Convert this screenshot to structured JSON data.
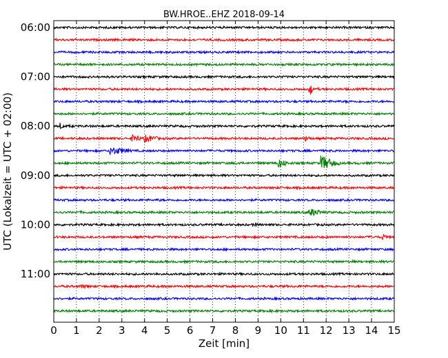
{
  "chart_data": {
    "type": "line",
    "title": "BW.HROE..EHZ 2018-09-14",
    "xlabel": "Zeit  [min]",
    "ylabel": "UTC (Lokalzeit = UTC + 02:00)",
    "xlim": [
      0,
      15
    ],
    "x_ticks": [
      0,
      1,
      2,
      3,
      4,
      5,
      6,
      7,
      8,
      9,
      10,
      11,
      12,
      13,
      14,
      15
    ],
    "y_ticks": [
      "06:00",
      "07:00",
      "08:00",
      "09:00",
      "10:00",
      "11:00"
    ],
    "grid": "vertical dotted",
    "trace_interval_min": 15,
    "colors": [
      "#000000",
      "#ff0000",
      "#0000ff",
      "#008000"
    ],
    "traces": [
      {
        "start": "06:00",
        "color": "#000000",
        "events": []
      },
      {
        "start": "06:15",
        "color": "#ff0000",
        "events": []
      },
      {
        "start": "06:30",
        "color": "#0000ff",
        "events": []
      },
      {
        "start": "06:45",
        "color": "#008000",
        "events": []
      },
      {
        "start": "07:00",
        "color": "#000000",
        "events": []
      },
      {
        "start": "07:15",
        "color": "#ff0000",
        "events": [
          {
            "t": 11.3,
            "amp": 10,
            "dur": 0.1
          },
          {
            "t": 11.6,
            "amp": 2,
            "dur": 0.6
          }
        ]
      },
      {
        "start": "07:30",
        "color": "#0000ff",
        "events": [
          {
            "t": 12.9,
            "amp": 2,
            "dur": 0.6
          }
        ]
      },
      {
        "start": "07:45",
        "color": "#008000",
        "events": []
      },
      {
        "start": "08:00",
        "color": "#000000",
        "events": [
          {
            "t": 0.3,
            "amp": 5,
            "dur": 0.2
          },
          {
            "t": 0.7,
            "amp": 2,
            "dur": 0.6
          },
          {
            "t": 8.9,
            "amp": 2,
            "dur": 0.4
          }
        ]
      },
      {
        "start": "08:15",
        "color": "#ff0000",
        "events": [
          {
            "t": 3.5,
            "amp": 7,
            "dur": 0.5
          },
          {
            "t": 4.0,
            "amp": 6,
            "dur": 0.9
          },
          {
            "t": 11.1,
            "amp": 4,
            "dur": 0.4
          }
        ]
      },
      {
        "start": "08:30",
        "color": "#0000ff",
        "events": [
          {
            "t": 2.5,
            "amp": 6,
            "dur": 1.3
          }
        ]
      },
      {
        "start": "08:45",
        "color": "#008000",
        "events": [
          {
            "t": 8.1,
            "amp": 3,
            "dur": 0.4
          },
          {
            "t": 9.9,
            "amp": 7,
            "dur": 0.6
          },
          {
            "t": 11.8,
            "amp": 11,
            "dur": 0.8
          },
          {
            "t": 13.4,
            "amp": 2,
            "dur": 0.3
          }
        ]
      },
      {
        "start": "09:00",
        "color": "#000000",
        "events": []
      },
      {
        "start": "09:15",
        "color": "#ff0000",
        "events": []
      },
      {
        "start": "09:30",
        "color": "#0000ff",
        "events": [
          {
            "t": 4.6,
            "amp": 2,
            "dur": 0.8
          }
        ]
      },
      {
        "start": "09:45",
        "color": "#008000",
        "events": [
          {
            "t": 1.2,
            "amp": 2,
            "dur": 0.8
          },
          {
            "t": 11.3,
            "amp": 6,
            "dur": 0.8
          }
        ]
      },
      {
        "start": "10:00",
        "color": "#000000",
        "events": [
          {
            "t": 8.8,
            "amp": 3,
            "dur": 0.5
          }
        ]
      },
      {
        "start": "10:15",
        "color": "#ff0000",
        "events": [
          {
            "t": 14.5,
            "amp": 4,
            "dur": 0.3
          }
        ]
      },
      {
        "start": "10:30",
        "color": "#0000ff",
        "events": []
      },
      {
        "start": "10:45",
        "color": "#008000",
        "events": [
          {
            "t": 13.2,
            "amp": 2,
            "dur": 0.4
          }
        ]
      },
      {
        "start": "11:00",
        "color": "#000000",
        "events": [
          {
            "t": 4.5,
            "amp": 2,
            "dur": 0.6
          }
        ]
      },
      {
        "start": "11:15",
        "color": "#ff0000",
        "events": [
          {
            "t": 1.2,
            "amp": 3,
            "dur": 0.9
          }
        ]
      },
      {
        "start": "11:30",
        "color": "#0000ff",
        "events": []
      },
      {
        "start": "11:45",
        "color": "#008000",
        "events": [
          {
            "t": 9.6,
            "amp": 2,
            "dur": 0.8
          }
        ]
      }
    ]
  }
}
